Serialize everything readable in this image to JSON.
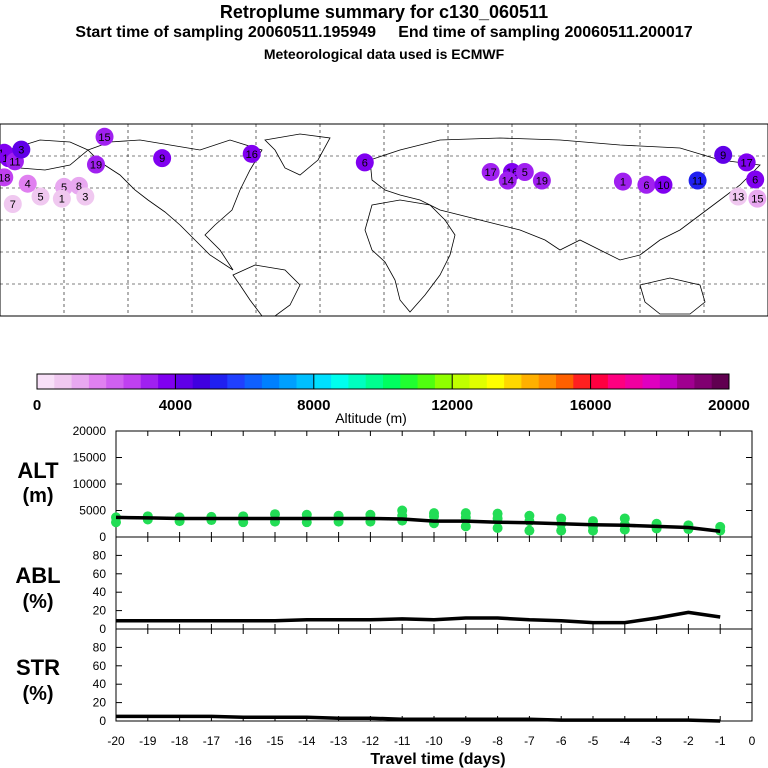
{
  "header": {
    "title": "Retroplume summary for c130_060511",
    "subtitle": "Start time of sampling 20060511.195949     End time of sampling 20060511.200017",
    "met": "Meteorological data used is ECMWF"
  },
  "colors": {
    "line": "#000000",
    "points": "#22dd55",
    "scale": [
      "#f8e0f8",
      "#f0c8f0",
      "#e8a8f0",
      "#e080f0",
      "#d060f0",
      "#c040f0",
      "#a020f0",
      "#8000f0",
      "#6000e8",
      "#4000e0",
      "#2020f0",
      "#2040ff",
      "#1060ff",
      "#0080ff",
      "#00a0ff",
      "#00c0ff",
      "#00e0ff",
      "#00ffee",
      "#00ffc0",
      "#00ff90",
      "#00ff60",
      "#20ff30",
      "#50ff10",
      "#90ff00",
      "#c0ff00",
      "#e0ff00",
      "#ffff00",
      "#ffd800",
      "#ffb000",
      "#ff8c00",
      "#ff6000",
      "#ff2020",
      "#ff0040",
      "#ff0080",
      "#f000a0",
      "#e000c0",
      "#c000c0",
      "#a00090",
      "#800070",
      "#600050"
    ]
  },
  "map": {
    "clusters": [
      {
        "label": "13",
        "lon": -178,
        "lat": 63,
        "alt": 3800
      },
      {
        "label": "12",
        "lon": -176,
        "lat": 58,
        "alt": 3500
      },
      {
        "label": "11",
        "lon": -173,
        "lat": 55,
        "alt": 3300
      },
      {
        "label": "3",
        "lon": -170,
        "lat": 66,
        "alt": 4000
      },
      {
        "label": "19",
        "lon": -135,
        "lat": 52,
        "alt": 3000
      },
      {
        "label": "15",
        "lon": -131,
        "lat": 78,
        "alt": 3300
      },
      {
        "label": "18",
        "lon": -178,
        "lat": 40,
        "alt": 2800
      },
      {
        "label": "4",
        "lon": -167,
        "lat": 34,
        "alt": 1500
      },
      {
        "label": "5",
        "lon": -150,
        "lat": 31,
        "alt": 1200
      },
      {
        "label": "8",
        "lon": -143,
        "lat": 32,
        "alt": 1300
      },
      {
        "label": "7",
        "lon": -174,
        "lat": 15,
        "alt": 800
      },
      {
        "label": "5",
        "lon": -161,
        "lat": 22,
        "alt": 700
      },
      {
        "label": "1",
        "lon": -151,
        "lat": 20,
        "alt": 600
      },
      {
        "label": "3",
        "lon": -140,
        "lat": 22,
        "alt": 900
      },
      {
        "label": "9",
        "lon": -104,
        "lat": 58,
        "alt": 3800
      },
      {
        "label": "16",
        "lon": -62,
        "lat": 62,
        "alt": 3600
      },
      {
        "label": "6",
        "lon": -9,
        "lat": 54,
        "alt": 3900
      },
      {
        "label": "17",
        "lon": 50,
        "lat": 45,
        "alt": 3400
      },
      {
        "label": "16",
        "lon": 60,
        "lat": 45,
        "alt": 3500
      },
      {
        "label": "5",
        "lon": 66,
        "lat": 45,
        "alt": 3200
      },
      {
        "label": "14",
        "lon": 58,
        "lat": 37,
        "alt": 3300
      },
      {
        "label": "19",
        "lon": 74,
        "lat": 37,
        "alt": 3100
      },
      {
        "label": "1",
        "lon": 112,
        "lat": 36,
        "alt": 3200
      },
      {
        "label": "6",
        "lon": 123,
        "lat": 33,
        "alt": 3400
      },
      {
        "label": "10",
        "lon": 131,
        "lat": 33,
        "alt": 3600
      },
      {
        "label": "11",
        "lon": 147,
        "lat": 37,
        "alt": 5000
      },
      {
        "label": "9",
        "lon": 159,
        "lat": 61,
        "alt": 4200
      },
      {
        "label": "17",
        "lon": 170,
        "lat": 54,
        "alt": 3600
      },
      {
        "label": "6",
        "lon": 174,
        "lat": 38,
        "alt": 3800
      },
      {
        "label": "13",
        "lon": 166,
        "lat": 22,
        "alt": 900
      },
      {
        "label": "15",
        "lon": 175,
        "lat": 20,
        "alt": 1200
      }
    ]
  },
  "colorbar": {
    "ticks": [
      "0",
      "4000",
      "8000",
      "12000",
      "16000",
      "20000"
    ],
    "label": "Altitude (m)",
    "min": 0,
    "max": 20000
  },
  "chart_data": [
    {
      "type": "line",
      "title": "ALT",
      "ylabel": "(m)",
      "ylim": [
        0,
        20000
      ],
      "yticks": [
        "0",
        "5000",
        "10000",
        "15000",
        "20000"
      ],
      "x": [
        -20,
        -19,
        -18,
        -17,
        -16,
        -15,
        -14,
        -13,
        -12,
        -11,
        -10,
        -9,
        -8,
        -7,
        -6,
        -5,
        -4,
        -3,
        -2,
        -1
      ],
      "series": [
        {
          "name": "median altitude",
          "values": [
            3700,
            3600,
            3500,
            3500,
            3500,
            3500,
            3500,
            3500,
            3500,
            3400,
            3000,
            3000,
            2800,
            2700,
            2500,
            2300,
            2200,
            2000,
            1800,
            1100
          ]
        }
      ],
      "points": [
        {
          "x": -20,
          "y": 3700
        },
        {
          "x": -20,
          "y": 2800
        },
        {
          "x": -19,
          "y": 3900
        },
        {
          "x": -19,
          "y": 3300
        },
        {
          "x": -18,
          "y": 3700
        },
        {
          "x": -18,
          "y": 3000
        },
        {
          "x": -17,
          "y": 3800
        },
        {
          "x": -17,
          "y": 3200
        },
        {
          "x": -16,
          "y": 3900
        },
        {
          "x": -16,
          "y": 2800
        },
        {
          "x": -15,
          "y": 4300
        },
        {
          "x": -15,
          "y": 2900
        },
        {
          "x": -14,
          "y": 4200
        },
        {
          "x": -14,
          "y": 2800
        },
        {
          "x": -13,
          "y": 4000
        },
        {
          "x": -13,
          "y": 2900
        },
        {
          "x": -12,
          "y": 4200
        },
        {
          "x": -12,
          "y": 3600
        },
        {
          "x": -12,
          "y": 2900
        },
        {
          "x": -11,
          "y": 5000
        },
        {
          "x": -11,
          "y": 4000
        },
        {
          "x": -11,
          "y": 3100
        },
        {
          "x": -10,
          "y": 4500
        },
        {
          "x": -10,
          "y": 3900
        },
        {
          "x": -10,
          "y": 2600
        },
        {
          "x": -9,
          "y": 4500
        },
        {
          "x": -9,
          "y": 3700
        },
        {
          "x": -9,
          "y": 2000
        },
        {
          "x": -8,
          "y": 4400
        },
        {
          "x": -8,
          "y": 3500
        },
        {
          "x": -8,
          "y": 1700
        },
        {
          "x": -7,
          "y": 4000
        },
        {
          "x": -7,
          "y": 3000
        },
        {
          "x": -7,
          "y": 1200
        },
        {
          "x": -6,
          "y": 3500
        },
        {
          "x": -6,
          "y": 2500
        },
        {
          "x": -6,
          "y": 1200
        },
        {
          "x": -5,
          "y": 3000
        },
        {
          "x": -5,
          "y": 2000
        },
        {
          "x": -5,
          "y": 1200
        },
        {
          "x": -4,
          "y": 3500
        },
        {
          "x": -4,
          "y": 2300
        },
        {
          "x": -4,
          "y": 1400
        },
        {
          "x": -3,
          "y": 2500
        },
        {
          "x": -3,
          "y": 1600
        },
        {
          "x": -2,
          "y": 2200
        },
        {
          "x": -2,
          "y": 1500
        },
        {
          "x": -1,
          "y": 1900
        },
        {
          "x": -1,
          "y": 1200
        }
      ]
    },
    {
      "type": "line",
      "title": "ABL",
      "ylabel": "(%)",
      "ylim": [
        0,
        100
      ],
      "yticks": [
        "0",
        "20",
        "40",
        "60",
        "80"
      ],
      "x": [
        -20,
        -19,
        -18,
        -17,
        -16,
        -15,
        -14,
        -13,
        -12,
        -11,
        -10,
        -9,
        -8,
        -7,
        -6,
        -5,
        -4,
        -3,
        -2,
        -1
      ],
      "series": [
        {
          "name": "ABL fraction",
          "values": [
            9,
            9,
            9,
            9,
            9,
            9,
            10,
            10,
            10,
            11,
            10,
            12,
            12,
            10,
            9,
            7,
            7,
            12,
            18,
            13
          ]
        }
      ]
    },
    {
      "type": "line",
      "title": "STR",
      "ylabel": "(%)",
      "ylim": [
        0,
        100
      ],
      "yticks": [
        "0",
        "20",
        "40",
        "60",
        "80"
      ],
      "x": [
        -20,
        -19,
        -18,
        -17,
        -16,
        -15,
        -14,
        -13,
        -12,
        -11,
        -10,
        -9,
        -8,
        -7,
        -6,
        -5,
        -4,
        -3,
        -2,
        -1
      ],
      "series": [
        {
          "name": "STR fraction",
          "values": [
            5,
            5,
            5,
            5,
            4,
            4,
            4,
            3,
            3,
            2,
            2,
            2,
            2,
            2,
            1,
            1,
            1,
            1,
            1,
            0
          ]
        }
      ]
    }
  ],
  "xaxis": {
    "ticks": [
      "-20",
      "-19",
      "-18",
      "-17",
      "-16",
      "-15",
      "-14",
      "-13",
      "-12",
      "-11",
      "-10",
      "-9",
      "-8",
      "-7",
      "-6",
      "-5",
      "-4",
      "-3",
      "-2",
      "-1",
      "0"
    ],
    "label": "Travel time (days)"
  }
}
